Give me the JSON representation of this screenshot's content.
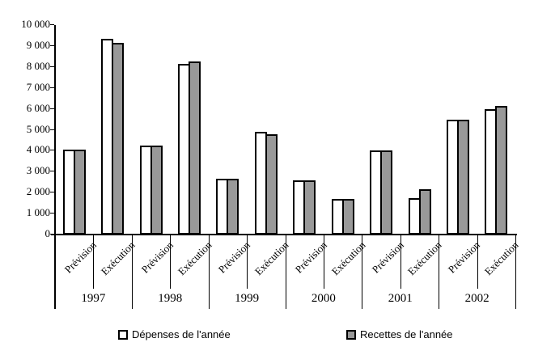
{
  "chart_data": {
    "type": "bar",
    "title": "",
    "y_axis": {
      "min": 0,
      "max": 10000,
      "step": 1000,
      "tick_labels": [
        "0",
        "1 000",
        "2 000",
        "3 000",
        "4 000",
        "5 000",
        "6 000",
        "7 000",
        "8 000",
        "9 000",
        "10 000"
      ]
    },
    "x_axis": {
      "years": [
        "1997",
        "1998",
        "1999",
        "2000",
        "2001",
        "2002"
      ],
      "subcategories": [
        "Prévision",
        "Exécution"
      ]
    },
    "series": [
      {
        "name": "Dépenses de l'année",
        "color": "#FFFFFF",
        "values": [
          4050,
          9350,
          4250,
          8150,
          2650,
          4900,
          2600,
          1700,
          4000,
          1750,
          5500,
          6000
        ]
      },
      {
        "name": "Recettes de l'année",
        "color": "#999999",
        "values": [
          4050,
          9150,
          4250,
          8250,
          2650,
          4800,
          2600,
          1700,
          4000,
          2150,
          5500,
          6150
        ]
      }
    ],
    "grid": false,
    "legend_position": "bottom"
  }
}
